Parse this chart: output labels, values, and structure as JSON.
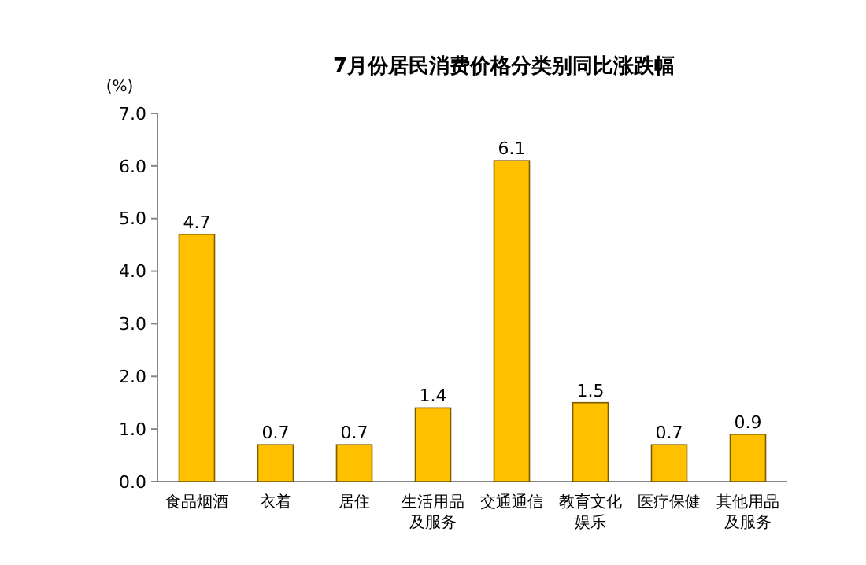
{
  "chart_data": {
    "type": "bar",
    "title": "7月份居民消费价格分类别同比涨跌幅",
    "ylabel": "(%)",
    "categories": [
      "食品烟酒",
      "衣着",
      "居住",
      "生活用品及服务",
      "交通通信",
      "教育文化娱乐",
      "医疗保健",
      "其他用品及服务"
    ],
    "values": [
      4.7,
      0.7,
      0.7,
      1.4,
      6.1,
      1.5,
      0.7,
      0.9
    ],
    "color": "#ffc000",
    "data_labels": true,
    "ylim": [
      0,
      7
    ],
    "yticks": [
      {
        "value": 0,
        "label": "0.0"
      },
      {
        "value": 1,
        "label": "1.0"
      },
      {
        "value": 2,
        "label": "2.0"
      },
      {
        "value": 3,
        "label": "3.0"
      },
      {
        "value": 4,
        "label": "4.0"
      },
      {
        "value": 5,
        "label": "5.0"
      },
      {
        "value": 6,
        "label": "6.0"
      },
      {
        "value": 7,
        "label": "7.0"
      }
    ]
  }
}
